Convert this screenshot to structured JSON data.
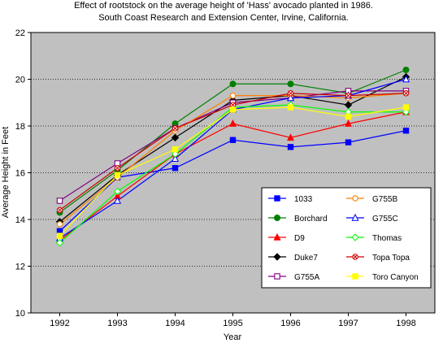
{
  "chart_data": {
    "type": "line",
    "title": "Effect of rootstock on the average height of 'Hass' avocado planted in 1986.",
    "subtitle": "South Coast Research and Extension Center, Irvine, California.",
    "xlabel": "Year",
    "ylabel": "Average Height in Feet",
    "x": [
      "1992",
      "1993",
      "1994",
      "1995",
      "1996",
      "1997",
      "1998"
    ],
    "ylim": [
      10,
      22
    ],
    "yticks": [
      10,
      12,
      14,
      16,
      18,
      20,
      22
    ],
    "grid": "horizontal dotted",
    "plot_background": "#c0c0c0",
    "legend_position": "bottom-right",
    "series": [
      {
        "name": "1033",
        "color": "#0000ff",
        "marker": "square-filled",
        "values": [
          13.5,
          15.8,
          16.2,
          17.4,
          17.1,
          17.3,
          17.8
        ]
      },
      {
        "name": "Borchard",
        "color": "#008000",
        "marker": "circle-filled",
        "values": [
          14.3,
          16.1,
          18.1,
          19.8,
          19.8,
          19.4,
          20.4
        ]
      },
      {
        "name": "D9",
        "color": "#ff0000",
        "marker": "triangle-filled",
        "values": [
          13.1,
          15.0,
          16.8,
          18.1,
          17.5,
          18.1,
          18.6
        ]
      },
      {
        "name": "Duke7",
        "color": "#000000",
        "marker": "diamond-filled",
        "values": [
          13.9,
          15.9,
          17.5,
          19.1,
          19.3,
          18.9,
          20.1
        ]
      },
      {
        "name": "G755A",
        "color": "#800080",
        "marker": "square-open",
        "values": [
          14.8,
          16.4,
          17.9,
          19.0,
          19.2,
          19.5,
          19.5
        ]
      },
      {
        "name": "G755B",
        "color": "#ff8000",
        "marker": "circle-open",
        "values": [
          13.8,
          15.8,
          17.8,
          19.3,
          19.3,
          19.2,
          19.4
        ]
      },
      {
        "name": "G755C",
        "color": "#0000ff",
        "marker": "triangle-open",
        "values": [
          13.2,
          14.8,
          16.6,
          18.7,
          19.2,
          19.3,
          20.0
        ]
      },
      {
        "name": "Thomas",
        "color": "#00ff00",
        "marker": "diamond-open",
        "values": [
          13.0,
          15.2,
          16.8,
          18.8,
          18.9,
          18.6,
          18.6
        ]
      },
      {
        "name": "Topa Topa",
        "color": "#cc0000",
        "marker": "x-circle",
        "values": [
          14.4,
          16.2,
          17.9,
          18.9,
          19.4,
          19.3,
          19.4
        ]
      },
      {
        "name": "Toro Canyon",
        "color": "#ffff00",
        "marker": "square-filled",
        "values": [
          13.3,
          15.9,
          17.0,
          18.7,
          18.8,
          18.4,
          18.8
        ]
      }
    ]
  }
}
